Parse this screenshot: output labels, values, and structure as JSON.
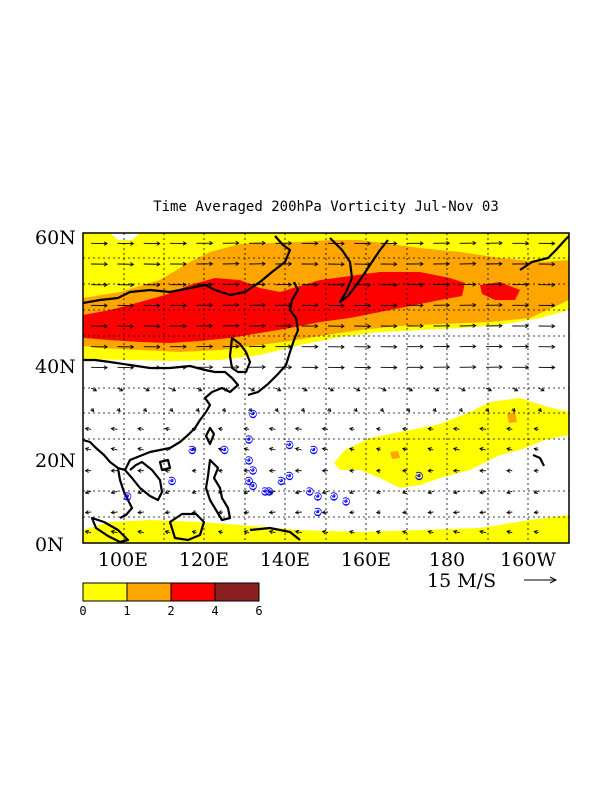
{
  "title": "Time Averaged 200hPa Vorticity Jul-Nov 03",
  "lat_labels": [
    "60N",
    "40N",
    "20N",
    "0N"
  ],
  "lon_labels": [
    "100E",
    "120E",
    "140E",
    "160E",
    "180",
    "160W"
  ],
  "reference_vector": {
    "label": "15 M/S"
  },
  "colorbar": {
    "ticks": [
      "0",
      "1",
      "2",
      "4",
      "6"
    ],
    "colors": [
      "#ffff00",
      "#ffa500",
      "#ff0000",
      "#8b2020"
    ]
  },
  "map_extent": {
    "lon_min": 90,
    "lon_max": 210,
    "lat_min": 0,
    "lat_max": 60
  },
  "typhoon_marker_color": "#0000ff",
  "typhoon_markers_lonlat": [
    [
      132,
      25
    ],
    [
      131,
      20
    ],
    [
      141,
      19
    ],
    [
      147,
      18
    ],
    [
      117,
      18
    ],
    [
      125,
      18
    ],
    [
      131,
      16
    ],
    [
      132,
      14
    ],
    [
      131,
      12
    ],
    [
      132,
      11
    ],
    [
      135,
      10
    ],
    [
      139,
      12
    ],
    [
      141,
      13
    ],
    [
      136,
      10
    ],
    [
      146,
      10
    ],
    [
      148,
      9
    ],
    [
      152,
      9
    ],
    [
      155,
      8
    ],
    [
      148,
      6
    ],
    [
      112,
      12
    ],
    [
      101,
      9
    ],
    [
      173,
      13
    ]
  ]
}
